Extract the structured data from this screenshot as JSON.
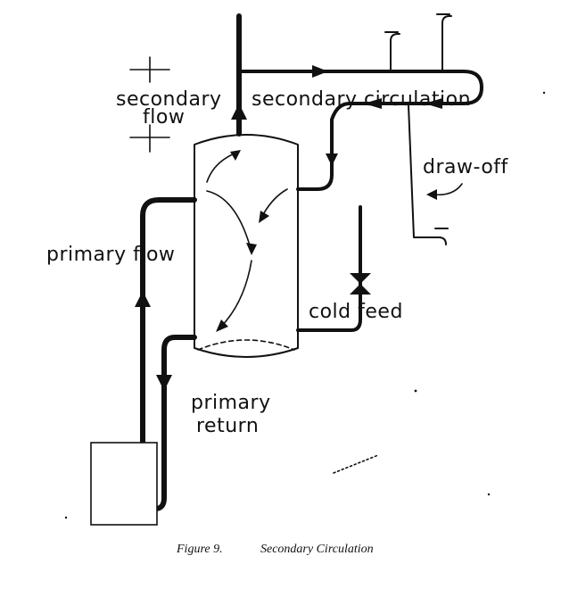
{
  "labels": {
    "secondary_flow_line1": "secondary",
    "secondary_flow_line2": "flow",
    "secondary_circulation": "secondary circulation",
    "draw_off": "draw-off",
    "primary_flow": "primary flow",
    "cold_feed": "cold feed",
    "primary_return_line1": "primary",
    "primary_return_line2": "return"
  },
  "caption": {
    "figure": "Figure 9.",
    "title": "Secondary Circulation"
  },
  "colors": {
    "ink": "#111111",
    "background": "#ffffff"
  }
}
